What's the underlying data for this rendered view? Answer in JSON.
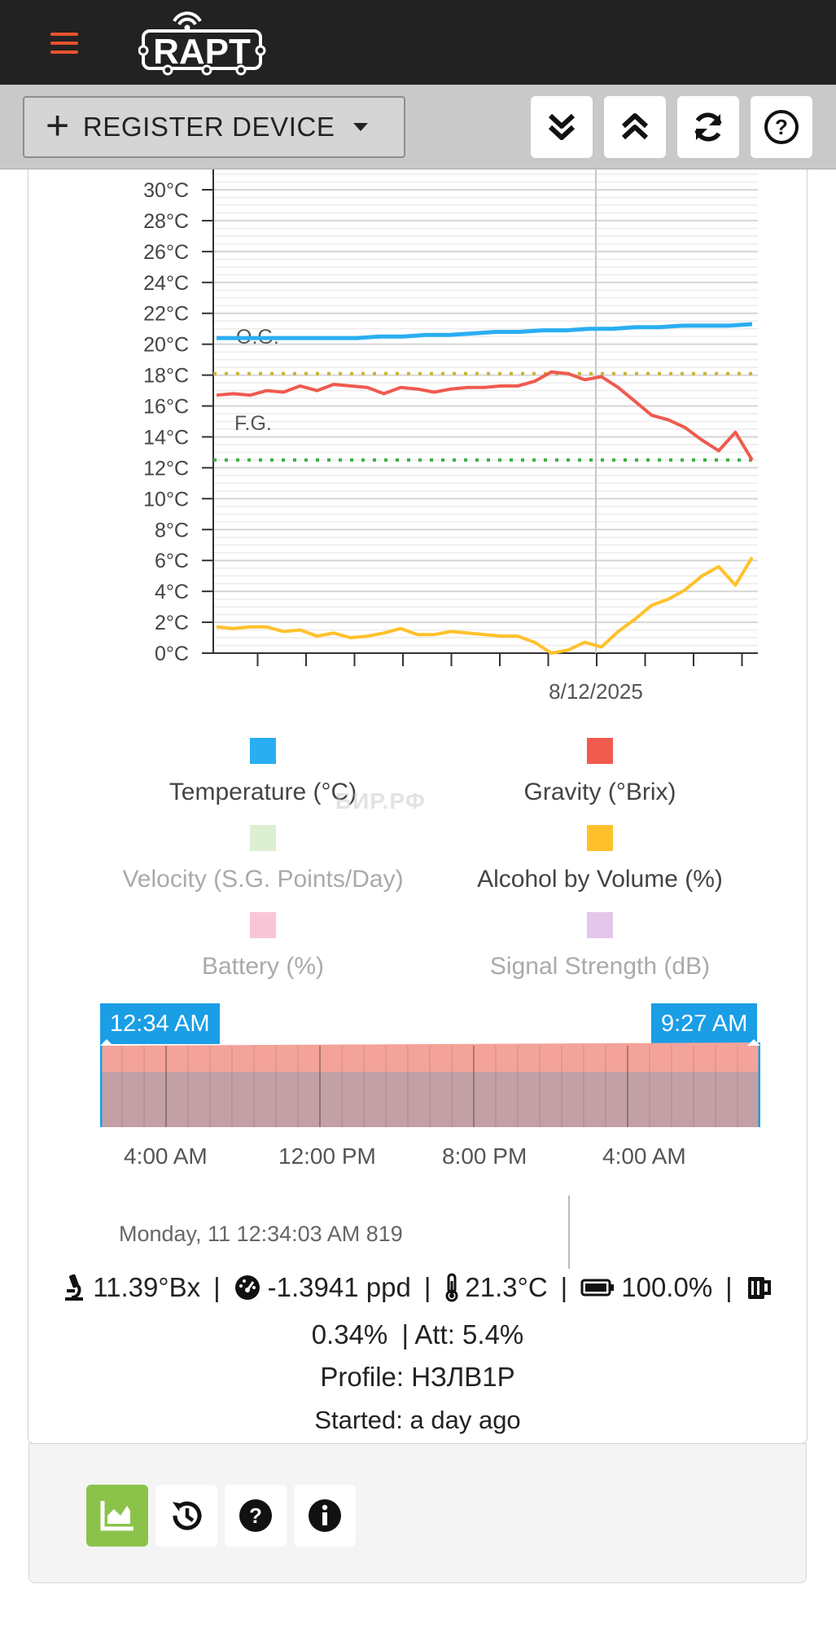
{
  "header": {
    "logo_text": "RAPT",
    "menu_icon": "hamburger-icon"
  },
  "toolbar": {
    "register_label": "REGISTER DEVICE",
    "buttons": [
      "collapse-all-icon",
      "expand-all-icon",
      "refresh-icon",
      "help-icon"
    ]
  },
  "chart_data": {
    "type": "line",
    "y_ticks": [
      "30°C",
      "28°C",
      "26°C",
      "24°C",
      "22°C",
      "20°C",
      "18°C",
      "16°C",
      "14°C",
      "12°C",
      "10°C",
      "8°C",
      "6°C",
      "4°C",
      "2°C",
      "0°C"
    ],
    "ylim": [
      0,
      31
    ],
    "x_label_date": "8/12/2025",
    "annotations": [
      "O.G.",
      "F.G."
    ],
    "og_level": 18.1,
    "fg_level": 12.5,
    "series": [
      {
        "name": "Temperature (°C)",
        "color": "#2aaef2",
        "values": [
          20.4,
          20.4,
          20.4,
          20.4,
          20.4,
          20.4,
          20.4,
          20.5,
          20.5,
          20.6,
          20.6,
          20.7,
          20.8,
          20.8,
          20.9,
          20.9,
          21.0,
          21.0,
          21.1,
          21.1,
          21.2,
          21.2,
          21.2,
          21.3
        ]
      },
      {
        "name": "Gravity (°Brix)",
        "color": "#f05a4f",
        "values": [
          16.7,
          16.8,
          16.7,
          17.0,
          16.9,
          17.3,
          17.0,
          17.4,
          17.3,
          17.2,
          16.8,
          17.2,
          17.1,
          16.9,
          17.1,
          17.2,
          17.2,
          17.3,
          17.3,
          17.6,
          18.2,
          18.1,
          17.7,
          17.9,
          17.2,
          16.3,
          15.4,
          15.1,
          14.6,
          13.8,
          13.1,
          14.3,
          12.5
        ]
      },
      {
        "name": "Alcohol by Volume (%)",
        "color": "#ffc12b",
        "values": [
          1.7,
          1.6,
          1.7,
          1.7,
          1.4,
          1.5,
          1.1,
          1.3,
          1.0,
          1.1,
          1.3,
          1.6,
          1.2,
          1.2,
          1.4,
          1.3,
          1.2,
          1.1,
          1.1,
          0.7,
          0.0,
          0.2,
          0.7,
          0.4,
          1.4,
          2.2,
          3.1,
          3.5,
          4.1,
          5.0,
          5.6,
          4.4,
          6.2
        ]
      }
    ]
  },
  "legend": [
    {
      "label": "Temperature (°C)",
      "color": "#2aaef2",
      "active": true
    },
    {
      "label": "Gravity (°Brix)",
      "color": "#f05a4f",
      "active": true
    },
    {
      "label": "Velocity (S.G. Points/Day)",
      "color": "#dcefd3",
      "active": false
    },
    {
      "label": "Alcohol by Volume (%)",
      "color": "#ffc12b",
      "active": true
    },
    {
      "label": "Battery (%)",
      "color": "#f8c6d7",
      "active": false
    },
    {
      "label": "Signal Strength (dB)",
      "color": "#e3c7ea",
      "active": false
    }
  ],
  "watermark": "БИР.РФ",
  "range": {
    "start": "12:34 AM",
    "end": "9:27 AM",
    "axis": [
      "4:00 AM",
      "12:00 PM",
      "8:00 PM",
      "4:00 AM"
    ]
  },
  "tooltip": {
    "date": "Monday, 11 12:34:03 AM 819"
  },
  "stats": {
    "gravity": "11.39°Bx",
    "velocity": "-1.3941 ppd",
    "temperature": "21.3°C",
    "battery": "100.0%",
    "abv": "0.34%",
    "attenuation": "| Att: 5.4%",
    "profile": "Profile: НЗЛВ1Р",
    "started": "Started: a day ago"
  },
  "footer": {
    "active_color": "#8bc34a"
  }
}
